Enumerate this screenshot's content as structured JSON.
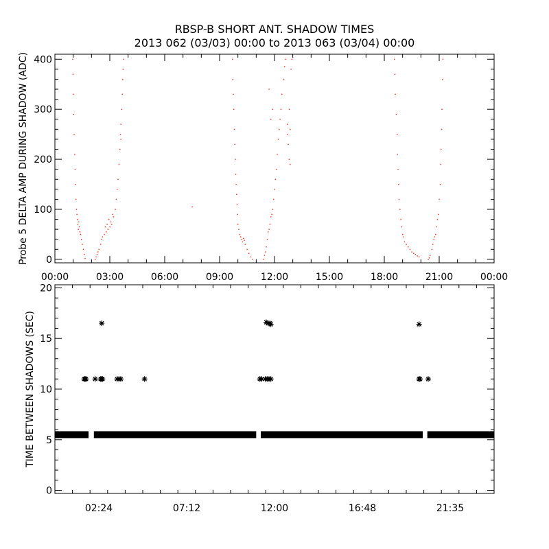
{
  "title": "RBSP-B SHORT ANT. SHADOW TIMES",
  "subtitle": "2013 062 (03/03) 00:00 to 2013 063 (03/04) 00:00",
  "colors": {
    "top_points": "#ff2200",
    "bottom_points": "#000000",
    "axes": "#000000"
  },
  "chart_data": [
    {
      "type": "scatter",
      "ylabel": "Probe 5 DELTA AMP DURING SHADOW (ADC)",
      "xlim": [
        0,
        24
      ],
      "ylim": [
        -7,
        410
      ],
      "x_unit": "hours",
      "xticks": [
        0,
        3,
        6,
        9,
        12,
        15,
        18,
        21,
        24
      ],
      "xtick_labels": [
        "00:00",
        "03:00",
        "06:00",
        "09:00",
        "12:00",
        "15:00",
        "18:00",
        "21:00",
        "00:00"
      ],
      "yticks": [
        0,
        100,
        200,
        300,
        400
      ],
      "ytick_labels": [
        "0",
        "100",
        "200",
        "300",
        "400"
      ],
      "points": [
        [
          0.97,
          400
        ],
        [
          0.99,
          370
        ],
        [
          1.0,
          330
        ],
        [
          1.02,
          290
        ],
        [
          1.05,
          250
        ],
        [
          1.08,
          210
        ],
        [
          1.1,
          180
        ],
        [
          1.12,
          150
        ],
        [
          1.15,
          120
        ],
        [
          1.18,
          100
        ],
        [
          1.2,
          90
        ],
        [
          1.22,
          80
        ],
        [
          1.25,
          70
        ],
        [
          1.28,
          60
        ],
        [
          1.3,
          75
        ],
        [
          1.33,
          65
        ],
        [
          1.36,
          55
        ],
        [
          1.4,
          50
        ],
        [
          1.45,
          40
        ],
        [
          1.5,
          30
        ],
        [
          1.55,
          20
        ],
        [
          1.6,
          10
        ],
        [
          1.65,
          2
        ],
        [
          2.2,
          0
        ],
        [
          2.25,
          5
        ],
        [
          2.3,
          10
        ],
        [
          2.35,
          15
        ],
        [
          2.4,
          20
        ],
        [
          2.5,
          30
        ],
        [
          2.55,
          40
        ],
        [
          2.6,
          45
        ],
        [
          2.7,
          50
        ],
        [
          2.75,
          65
        ],
        [
          2.8,
          55
        ],
        [
          2.85,
          70
        ],
        [
          2.9,
          60
        ],
        [
          2.95,
          80
        ],
        [
          3.0,
          65
        ],
        [
          3.05,
          75
        ],
        [
          3.1,
          70
        ],
        [
          3.15,
          90
        ],
        [
          3.2,
          85
        ],
        [
          3.3,
          100
        ],
        [
          3.35,
          120
        ],
        [
          3.4,
          140
        ],
        [
          3.45,
          160
        ],
        [
          3.5,
          190
        ],
        [
          3.55,
          220
        ],
        [
          3.58,
          250
        ],
        [
          3.6,
          270
        ],
        [
          3.65,
          300
        ],
        [
          3.68,
          330
        ],
        [
          3.7,
          360
        ],
        [
          3.75,
          400
        ],
        [
          3.72,
          380
        ],
        [
          3.6,
          240
        ],
        [
          7.5,
          105
        ],
        [
          9.7,
          400
        ],
        [
          9.72,
          360
        ],
        [
          9.75,
          330
        ],
        [
          9.77,
          300
        ],
        [
          9.8,
          260
        ],
        [
          9.83,
          230
        ],
        [
          9.85,
          200
        ],
        [
          9.88,
          170
        ],
        [
          9.9,
          150
        ],
        [
          9.93,
          130
        ],
        [
          9.95,
          110
        ],
        [
          9.98,
          90
        ],
        [
          10.0,
          70
        ],
        [
          10.05,
          60
        ],
        [
          10.1,
          50
        ],
        [
          10.15,
          45
        ],
        [
          10.2,
          40
        ],
        [
          10.25,
          35
        ],
        [
          10.3,
          42
        ],
        [
          10.35,
          38
        ],
        [
          10.4,
          30
        ],
        [
          10.5,
          20
        ],
        [
          10.6,
          12
        ],
        [
          10.7,
          5
        ],
        [
          10.8,
          0
        ],
        [
          11.4,
          0
        ],
        [
          11.45,
          8
        ],
        [
          11.5,
          15
        ],
        [
          11.55,
          25
        ],
        [
          11.6,
          40
        ],
        [
          11.65,
          55
        ],
        [
          11.7,
          60
        ],
        [
          11.75,
          70
        ],
        [
          11.8,
          85
        ],
        [
          11.85,
          90
        ],
        [
          11.9,
          100
        ],
        [
          11.95,
          120
        ],
        [
          12.0,
          140
        ],
        [
          12.05,
          160
        ],
        [
          12.1,
          180
        ],
        [
          12.15,
          210
        ],
        [
          12.2,
          240
        ],
        [
          12.25,
          260
        ],
        [
          12.3,
          280
        ],
        [
          12.35,
          300
        ],
        [
          12.4,
          330
        ],
        [
          12.5,
          360
        ],
        [
          12.55,
          385
        ],
        [
          12.6,
          400
        ],
        [
          11.8,
          280
        ],
        [
          11.7,
          340
        ],
        [
          11.9,
          300
        ],
        [
          12.7,
          250
        ],
        [
          12.75,
          230
        ],
        [
          12.8,
          200
        ],
        [
          12.8,
          300
        ],
        [
          12.85,
          190
        ],
        [
          12.9,
          380
        ],
        [
          12.95,
          400
        ],
        [
          12.7,
          270
        ],
        [
          12.85,
          260
        ],
        [
          18.55,
          400
        ],
        [
          18.58,
          370
        ],
        [
          18.6,
          330
        ],
        [
          18.65,
          290
        ],
        [
          18.7,
          250
        ],
        [
          18.72,
          210
        ],
        [
          18.75,
          180
        ],
        [
          18.78,
          150
        ],
        [
          18.8,
          120
        ],
        [
          18.85,
          100
        ],
        [
          18.9,
          80
        ],
        [
          18.95,
          65
        ],
        [
          19.0,
          50
        ],
        [
          19.05,
          45
        ],
        [
          19.1,
          35
        ],
        [
          19.2,
          30
        ],
        [
          19.3,
          25
        ],
        [
          19.4,
          20
        ],
        [
          19.5,
          15
        ],
        [
          19.6,
          12
        ],
        [
          19.7,
          10
        ],
        [
          19.8,
          7
        ],
        [
          19.9,
          5
        ],
        [
          20.4,
          0
        ],
        [
          20.45,
          3
        ],
        [
          20.5,
          8
        ],
        [
          20.6,
          20
        ],
        [
          20.65,
          30
        ],
        [
          20.7,
          40
        ],
        [
          20.75,
          45
        ],
        [
          20.8,
          50
        ],
        [
          20.85,
          65
        ],
        [
          20.9,
          80
        ],
        [
          20.95,
          90
        ],
        [
          21.0,
          120
        ],
        [
          21.05,
          150
        ],
        [
          21.08,
          190
        ],
        [
          21.1,
          220
        ],
        [
          21.13,
          260
        ],
        [
          21.15,
          300
        ],
        [
          21.18,
          360
        ],
        [
          21.2,
          400
        ]
      ]
    },
    {
      "type": "scatter",
      "ylabel": "TIME BETWEEN SHADOWS (SEC)",
      "xlim": [
        0,
        24
      ],
      "ylim": [
        -0.3,
        20.3
      ],
      "x_unit": "hours",
      "xticks": [
        2.4,
        7.2,
        12.0,
        16.8,
        21.6
      ],
      "xtick_labels": [
        "02:24",
        "07:12",
        "12:00",
        "16:48",
        "21:35"
      ],
      "yticks": [
        0,
        5,
        10,
        15,
        20
      ],
      "ytick_labels": [
        "0",
        "5",
        "10",
        "15",
        "20"
      ],
      "baseline_value": 5.5,
      "baseline_segments": [
        [
          0,
          1.84
        ],
        [
          2.13,
          11.0
        ],
        [
          11.25,
          20.1
        ],
        [
          20.35,
          24
        ]
      ],
      "points": [
        [
          1.6,
          11
        ],
        [
          1.65,
          11
        ],
        [
          1.7,
          11
        ],
        [
          2.2,
          11
        ],
        [
          2.5,
          11
        ],
        [
          2.55,
          11
        ],
        [
          2.6,
          11
        ],
        [
          3.4,
          11
        ],
        [
          3.5,
          11
        ],
        [
          3.6,
          11
        ],
        [
          4.9,
          11
        ],
        [
          11.2,
          11
        ],
        [
          11.3,
          11
        ],
        [
          11.5,
          11
        ],
        [
          11.6,
          11
        ],
        [
          11.7,
          11
        ],
        [
          11.8,
          11
        ],
        [
          19.9,
          11
        ],
        [
          19.95,
          11
        ],
        [
          20.4,
          11
        ],
        [
          2.56,
          16.5
        ],
        [
          11.55,
          16.6
        ],
        [
          11.65,
          16.5
        ],
        [
          11.75,
          16.5
        ],
        [
          11.8,
          16.4
        ],
        [
          19.9,
          16.4
        ]
      ]
    }
  ]
}
